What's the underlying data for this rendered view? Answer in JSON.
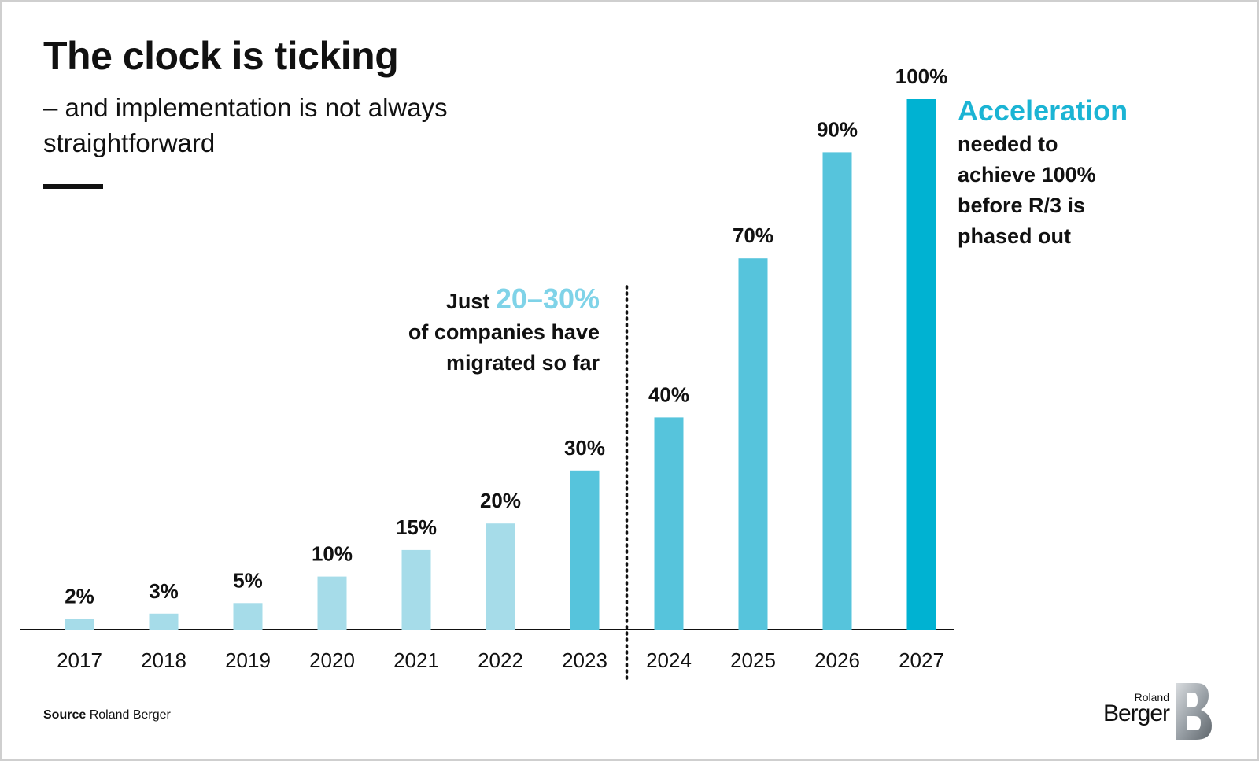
{
  "header": {
    "title": "The clock is ticking",
    "subtitle": "– and implementation is not always straightforward"
  },
  "annotations": {
    "mid_prefix": "Just ",
    "mid_highlight": "20–30%",
    "mid_line2": "of companies have",
    "mid_line3": "migrated so far",
    "right_head": "Acceleration",
    "right_line1": "needed to",
    "right_line2": "achieve 100%",
    "right_line3": "before R/3 is",
    "right_line4": "phased out"
  },
  "footer": {
    "source_label": "Source",
    "source_text": " Roland Berger"
  },
  "logo": {
    "line1": "Roland",
    "line2": "Berger"
  },
  "colors": {
    "light": "#a6dce9",
    "medium": "#56c4dc",
    "dark": "#00b2d2",
    "highlight": "#7fd3e8",
    "accent": "#1bb4d4",
    "text": "#111111"
  },
  "chart_data": {
    "type": "bar",
    "title": "The clock is ticking",
    "xlabel": "",
    "ylabel": "",
    "ylim": [
      0,
      100
    ],
    "categories": [
      "2017",
      "2018",
      "2019",
      "2020",
      "2021",
      "2022",
      "2023",
      "2024",
      "2025",
      "2026",
      "2027"
    ],
    "values": [
      2,
      3,
      5,
      10,
      15,
      20,
      30,
      40,
      70,
      90,
      100
    ],
    "data_labels": [
      "2%",
      "3%",
      "5%",
      "10%",
      "15%",
      "20%",
      "30%",
      "40%",
      "70%",
      "90%",
      "100%"
    ],
    "bar_color_keys": [
      "light",
      "light",
      "light",
      "light",
      "light",
      "light",
      "medium",
      "medium",
      "medium",
      "medium",
      "dark"
    ],
    "divider_after": "2023",
    "grid": false,
    "legend": "none"
  }
}
